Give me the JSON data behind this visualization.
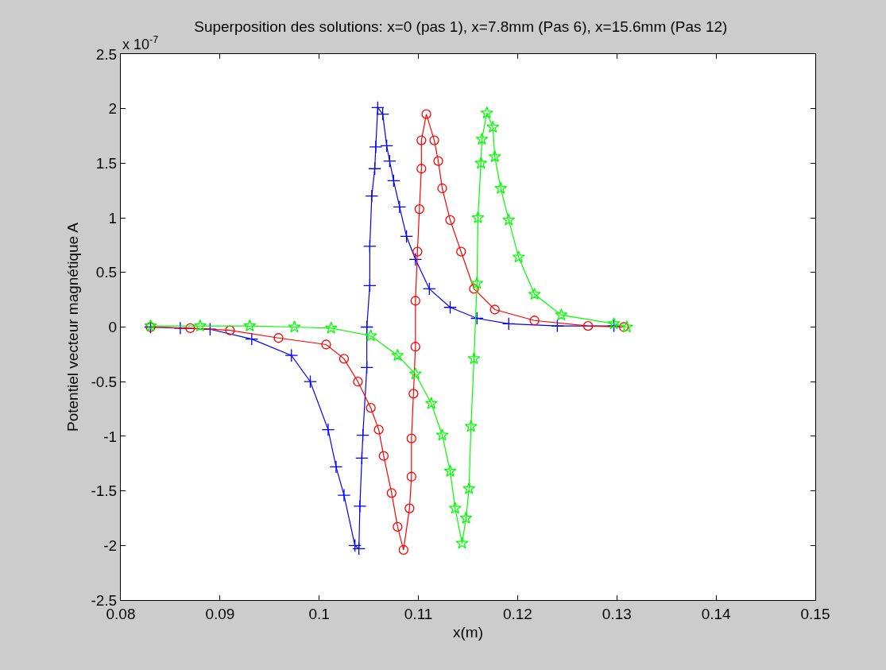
{
  "chart_data": {
    "type": "line",
    "title": "Superposition des solutions: x=0 (pas 1), x=7.8mm (Pas 6), x=15.6mm (Pas 12)",
    "xlabel": "x(m)",
    "ylabel": "Potentiel vecteur magnétique A",
    "annotations": [
      "x 10$^{-7}$"
    ],
    "xlim": [
      0.08,
      0.15
    ],
    "xticks": [
      0.08,
      0.09,
      0.1,
      0.11,
      0.12,
      0.13,
      0.14,
      0.15
    ],
    "ylim": [
      -2.5,
      2.5
    ],
    "yticks": [
      -2.5,
      -2,
      -1.5,
      -1,
      -0.5,
      0,
      0.5,
      1,
      1.5,
      2,
      2.5
    ],
    "line_style": "solid",
    "series": [
      {
        "color": "#0000ff",
        "marker": "cross",
        "x": [
          0.083,
          0.086,
          0.089,
          0.0932,
          0.0972,
          0.0991,
          0.1009,
          0.1017,
          0.1025,
          0.1036,
          0.104,
          0.1041,
          0.1043,
          0.1044,
          0.1048,
          0.1048,
          0.1051,
          0.1051,
          0.1053,
          0.1056,
          0.1057,
          0.1059,
          0.1064,
          0.1068,
          0.1071,
          0.1075,
          0.1081,
          0.1088,
          0.1097,
          0.1111,
          0.1132,
          0.1159,
          0.1191,
          0.124,
          0.1297
        ],
        "values": [
          0,
          -0.01,
          -0.02,
          -0.11,
          -0.26,
          -0.5,
          -0.94,
          -1.28,
          -1.54,
          -2.0,
          -2.03,
          -1.64,
          -1.2,
          -0.99,
          -0.37,
          0,
          0.38,
          0.74,
          1.2,
          1.45,
          1.65,
          2.01,
          1.95,
          1.66,
          1.52,
          1.34,
          1.1,
          0.83,
          0.62,
          0.35,
          0.18,
          0.08,
          0.03,
          0.01,
          0.01
        ]
      },
      {
        "color": "#ff0000",
        "marker": "circle",
        "x": [
          0.083,
          0.087,
          0.091,
          0.0959,
          0.1007,
          0.1025,
          0.1039,
          0.1052,
          0.106,
          0.1065,
          0.1073,
          0.1079,
          0.1085,
          0.1091,
          0.1093,
          0.1093,
          0.1095,
          0.1097,
          0.1097,
          0.1099,
          0.1101,
          0.1103,
          0.1103,
          0.1108,
          0.1116,
          0.112,
          0.1124,
          0.1132,
          0.1143,
          0.1156,
          0.1177,
          0.1217,
          0.1271,
          0.1307
        ],
        "values": [
          0,
          -0.01,
          -0.03,
          -0.1,
          -0.16,
          -0.29,
          -0.5,
          -0.74,
          -0.94,
          -1.18,
          -1.52,
          -1.83,
          -2.04,
          -1.66,
          -1.37,
          -1.02,
          -0.61,
          -0.18,
          0.24,
          0.69,
          1.08,
          1.45,
          1.71,
          1.95,
          1.71,
          1.52,
          1.27,
          0.98,
          0.69,
          0.35,
          0.16,
          0.06,
          0.01,
          0
        ]
      },
      {
        "color": "#00ff00",
        "marker": "star",
        "x": [
          0.083,
          0.088,
          0.093,
          0.0975,
          0.1012,
          0.1052,
          0.1079,
          0.1097,
          0.1113,
          0.1124,
          0.1132,
          0.1137,
          0.1144,
          0.1148,
          0.1151,
          0.1153,
          0.1156,
          0.1159,
          0.116,
          0.1163,
          0.1164,
          0.1169,
          0.1175,
          0.1177,
          0.1183,
          0.1191,
          0.1201,
          0.1217,
          0.1244,
          0.1297,
          0.131
        ],
        "values": [
          0.01,
          0.01,
          0.01,
          0,
          -0.01,
          -0.08,
          -0.26,
          -0.43,
          -0.7,
          -0.99,
          -1.32,
          -1.66,
          -1.98,
          -1.75,
          -1.48,
          -0.91,
          -0.29,
          0.4,
          1.0,
          1.5,
          1.72,
          1.96,
          1.83,
          1.56,
          1.27,
          0.98,
          0.64,
          0.3,
          0.11,
          0.03,
          0
        ]
      }
    ]
  }
}
